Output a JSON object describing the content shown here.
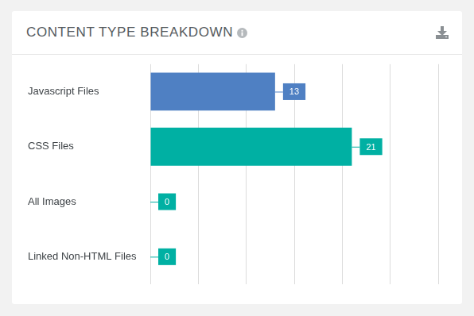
{
  "chart_data": {
    "type": "bar",
    "title": "CONTENT TYPE BREAKDOWN",
    "orientation": "horizontal",
    "categories": [
      "Javascript Files",
      "CSS Files",
      "All Images",
      "Linked Non-HTML Files"
    ],
    "values": [
      13,
      21,
      0,
      0
    ],
    "colors": [
      "#4f80c3",
      "#00b0a3",
      "#00b0a3",
      "#00b0a3"
    ],
    "xlim": [
      0,
      30
    ],
    "xticks": [
      0,
      5,
      10,
      15,
      20,
      25,
      30
    ],
    "grid": true,
    "data_labels": true,
    "tick_labels": "y"
  }
}
